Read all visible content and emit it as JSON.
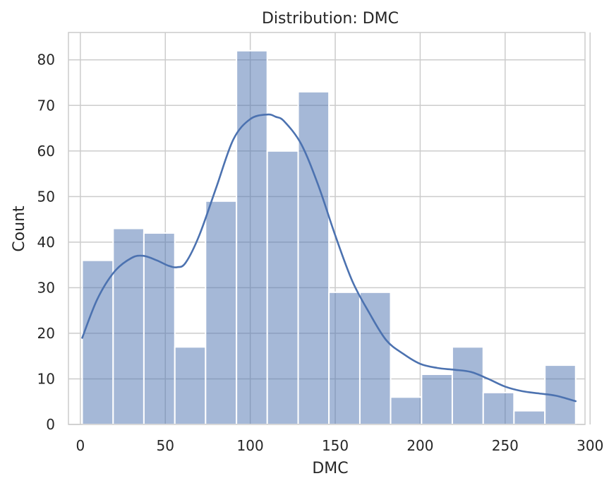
{
  "chart_data": {
    "type": "bar",
    "title": "Distribution: DMC",
    "xlabel": "DMC",
    "ylabel": "Count",
    "xlim": [
      -7,
      297
    ],
    "ylim": [
      0,
      86
    ],
    "xticks": [
      0,
      50,
      100,
      150,
      200,
      250,
      300
    ],
    "yticks": [
      0,
      10,
      20,
      30,
      40,
      50,
      60,
      70,
      80
    ],
    "grid": true,
    "bar_color": "#4c72b0",
    "bar_opacity": 0.5,
    "kde_color": "#4c72b0",
    "bins": [
      {
        "x0": 1.1,
        "x1": 19.3,
        "count": 36
      },
      {
        "x0": 19.3,
        "x1": 37.4,
        "count": 43
      },
      {
        "x0": 37.4,
        "x1": 55.6,
        "count": 42
      },
      {
        "x0": 55.6,
        "x1": 73.7,
        "count": 17
      },
      {
        "x0": 73.7,
        "x1": 91.9,
        "count": 49
      },
      {
        "x0": 91.9,
        "x1": 110.0,
        "count": 82
      },
      {
        "x0": 110.0,
        "x1": 128.2,
        "count": 60
      },
      {
        "x0": 128.2,
        "x1": 146.3,
        "count": 73
      },
      {
        "x0": 146.3,
        "x1": 164.5,
        "count": 29
      },
      {
        "x0": 164.5,
        "x1": 182.6,
        "count": 29
      },
      {
        "x0": 182.6,
        "x1": 200.8,
        "count": 6
      },
      {
        "x0": 200.8,
        "x1": 218.9,
        "count": 11
      },
      {
        "x0": 218.9,
        "x1": 237.1,
        "count": 17
      },
      {
        "x0": 237.1,
        "x1": 255.2,
        "count": 7
      },
      {
        "x0": 255.2,
        "x1": 273.4,
        "count": 3
      },
      {
        "x0": 273.4,
        "x1": 291.5,
        "count": 13
      }
    ],
    "kde": {
      "x": [
        1.1,
        10,
        20,
        30,
        37,
        45,
        52,
        57,
        62,
        70,
        80,
        90,
        100,
        110,
        115,
        120,
        130,
        140,
        150,
        160,
        170,
        180,
        190,
        200,
        210,
        220,
        230,
        240,
        250,
        260,
        270,
        280,
        291.5
      ],
      "y": [
        19,
        27.5,
        33.5,
        36.5,
        37,
        36,
        34.8,
        34.5,
        35.5,
        41.5,
        52,
        62.5,
        67,
        68,
        67.5,
        66.5,
        61.5,
        52.5,
        41.5,
        31.5,
        24.5,
        18.5,
        15.5,
        13.3,
        12.4,
        12,
        11.5,
        10,
        8.3,
        7.3,
        6.8,
        6.3,
        5.1
      ]
    }
  }
}
